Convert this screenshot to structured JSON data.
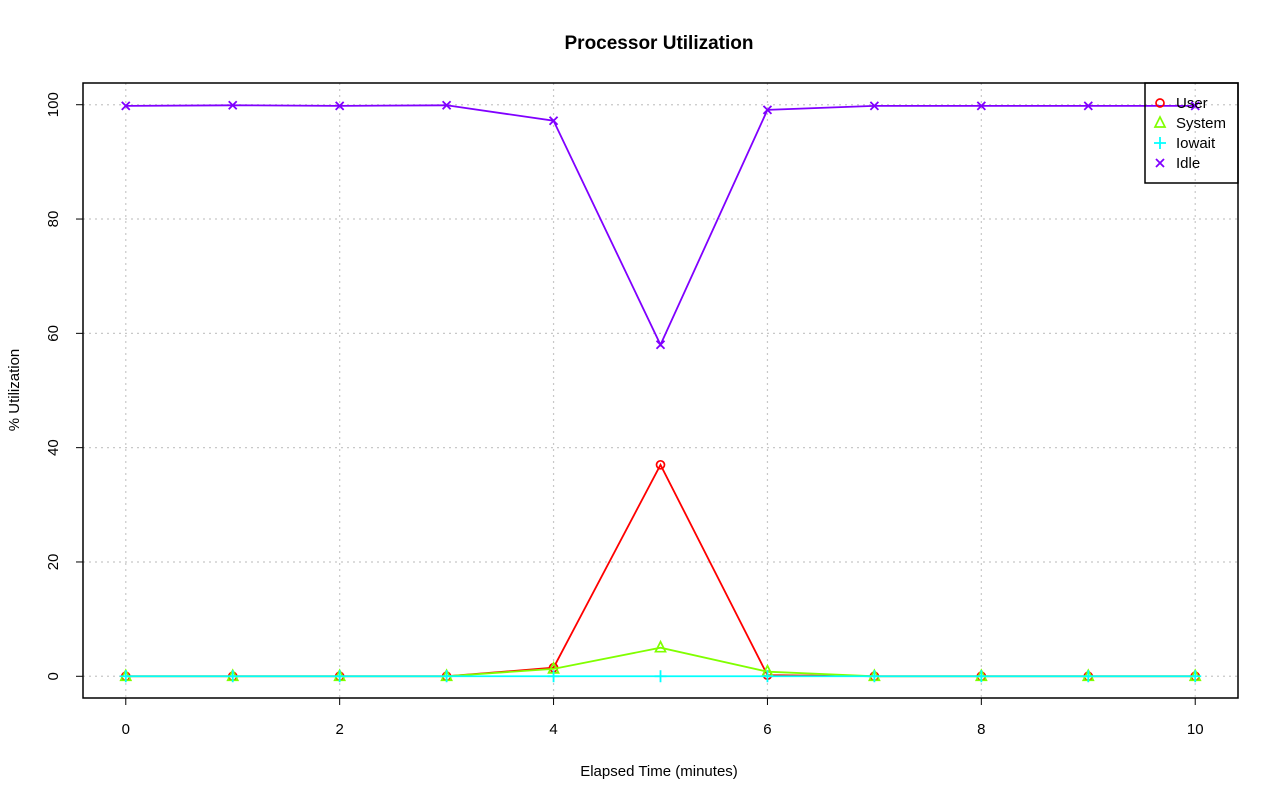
{
  "chart_data": {
    "type": "line",
    "title": "Processor Utilization",
    "xlabel": "Elapsed Time (minutes)",
    "ylabel": "% Utilization",
    "x": [
      0,
      1,
      2,
      3,
      4,
      5,
      6,
      7,
      8,
      9,
      10
    ],
    "xlim": [
      -0.4,
      10.4
    ],
    "ylim": [
      -3.8,
      103.8
    ],
    "xticks": [
      0,
      2,
      4,
      6,
      8,
      10
    ],
    "yticks": [
      0,
      20,
      40,
      60,
      80,
      100
    ],
    "grid": true,
    "legend_position": "top-right",
    "series": [
      {
        "name": "User",
        "color": "#ff0000",
        "marker": "circle",
        "values": [
          0,
          0,
          0,
          0,
          1.5,
          37,
          0.2,
          0,
          0,
          0,
          0
        ]
      },
      {
        "name": "System",
        "color": "#80ff00",
        "marker": "triangle",
        "values": [
          0,
          0,
          0,
          0,
          1.3,
          5,
          0.8,
          0,
          0,
          0,
          0
        ]
      },
      {
        "name": "Iowait",
        "color": "#00ffff",
        "marker": "plus",
        "values": [
          0,
          0,
          0,
          0,
          0,
          0,
          0,
          0,
          0,
          0,
          0
        ]
      },
      {
        "name": "Idle",
        "color": "#8000ff",
        "marker": "cross",
        "values": [
          99.8,
          99.9,
          99.8,
          99.9,
          97.2,
          58,
          99.1,
          99.8,
          99.8,
          99.8,
          99.8
        ]
      }
    ]
  }
}
